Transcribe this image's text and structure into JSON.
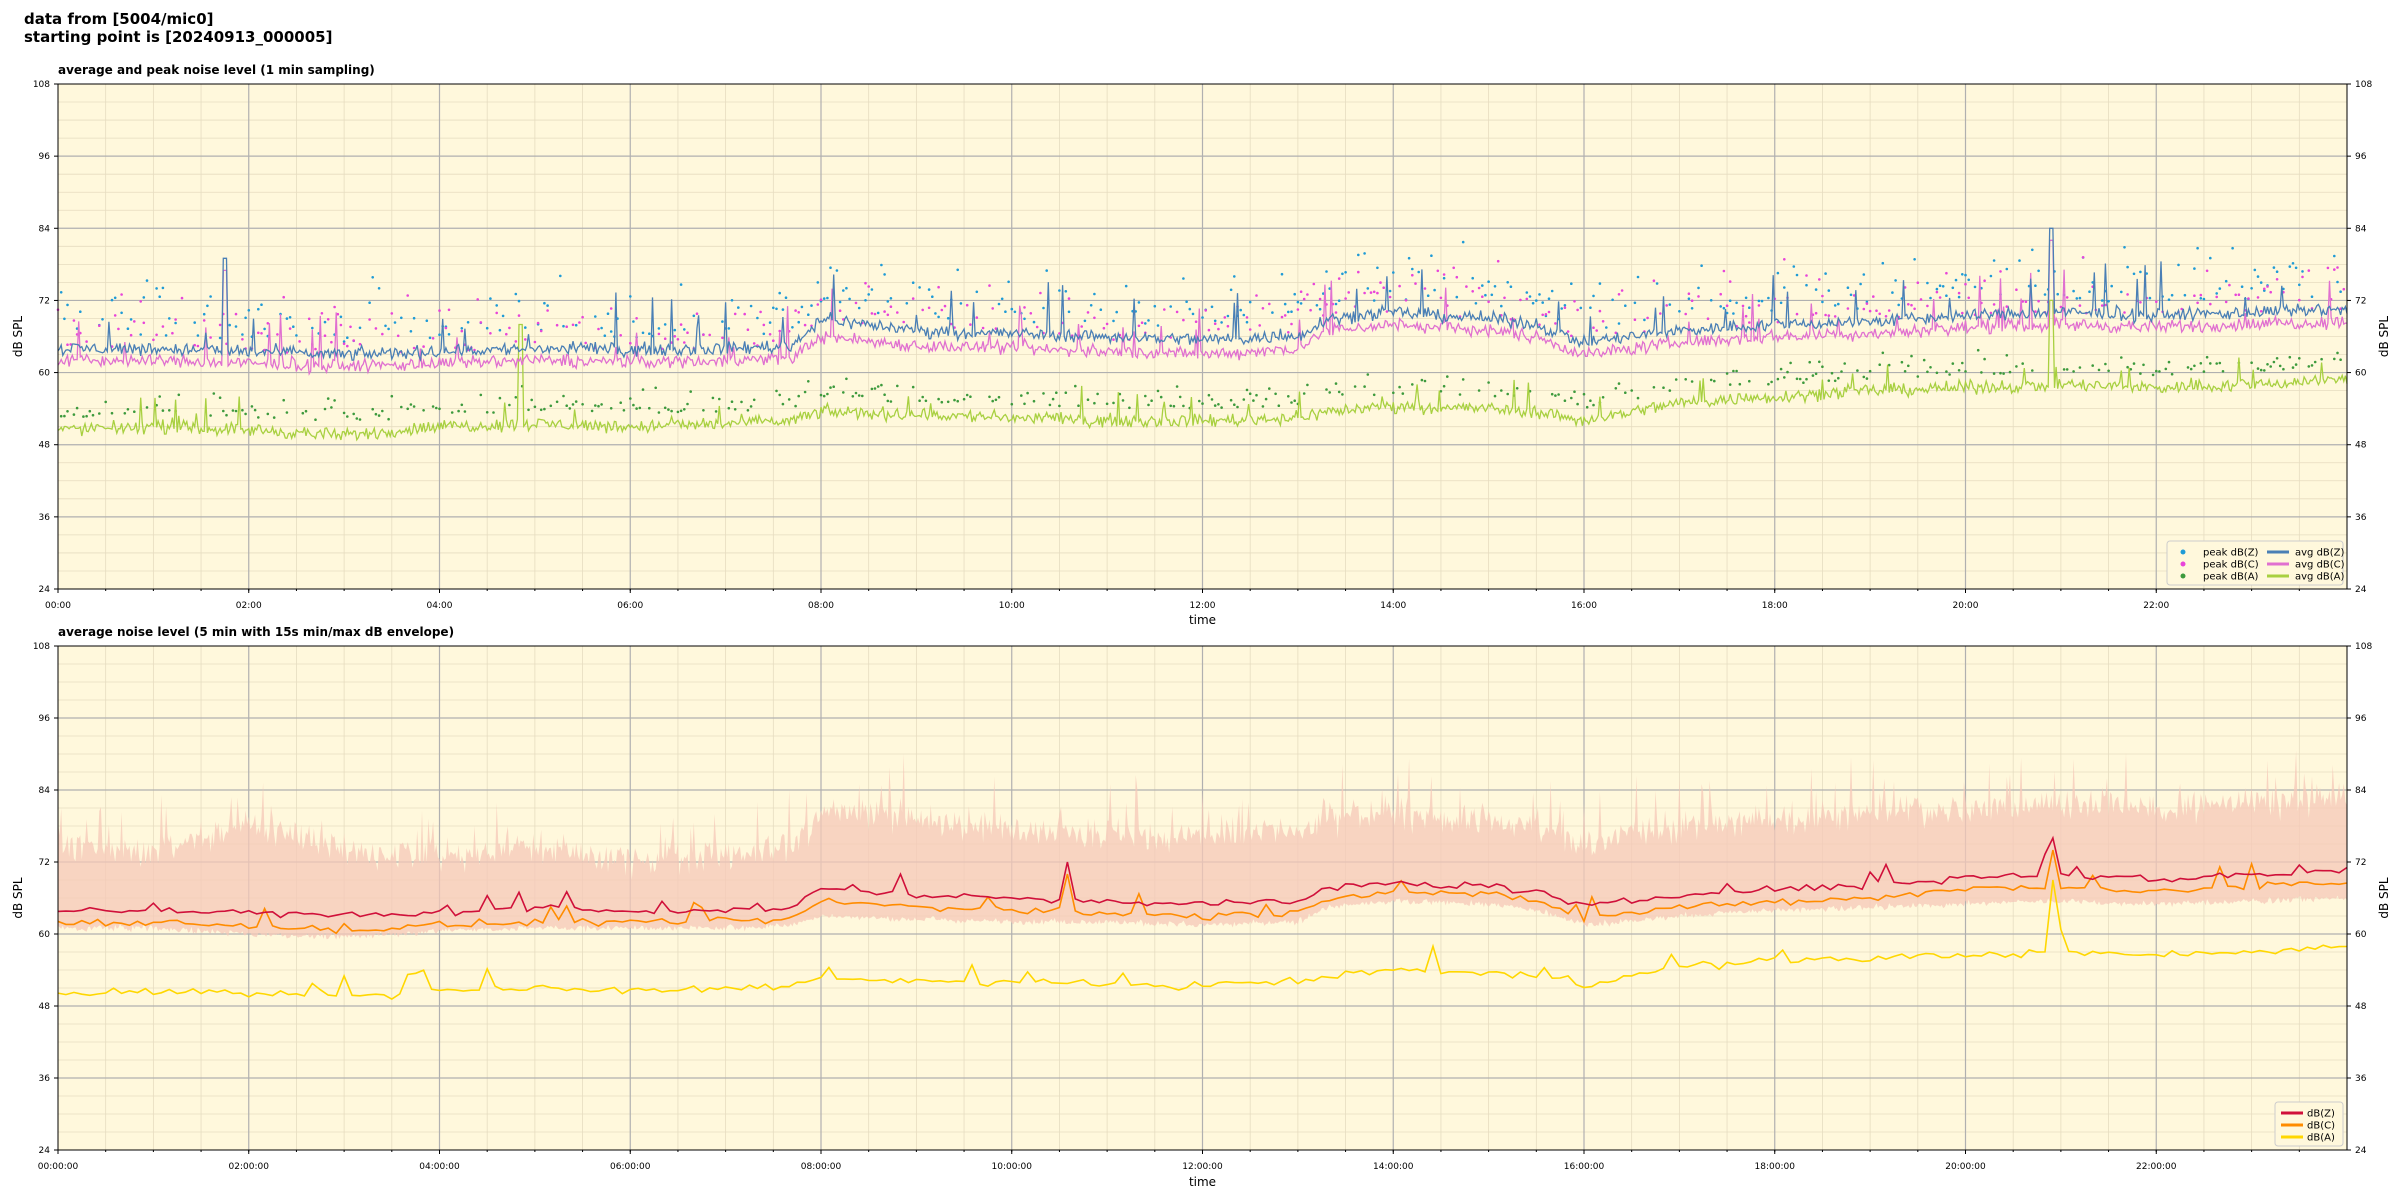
{
  "header": {
    "line1": "data from [5004/mic0]",
    "line2": "starting point is [20240913_000005]"
  },
  "colors": {
    "plot_bg": "#fff8dc",
    "peak_z": "#1f9bd6",
    "peak_c": "#e845d9",
    "peak_a": "#3d9a3d",
    "avg_z": "#4a7fb5",
    "avg_c": "#e070d0",
    "avg_a": "#a8d040",
    "env_fill": "#f5c8b8",
    "dbz": "#d0103a",
    "dbc": "#ff8c00",
    "dba": "#ffd700"
  },
  "chart_data": [
    {
      "type": "line",
      "title": "average and peak noise level (1 min sampling)",
      "xlabel": "time",
      "ylabel": "dB SPL",
      "ylabel_right": "dB SPL",
      "xlim": [
        0,
        24
      ],
      "ylim": [
        24,
        108
      ],
      "yticks": [
        "24",
        "36",
        "48",
        "60",
        "72",
        "84",
        "96",
        "108"
      ],
      "xticks": [
        "00:00",
        "02:00",
        "04:00",
        "06:00",
        "08:00",
        "10:00",
        "12:00",
        "14:00",
        "16:00",
        "18:00",
        "20:00",
        "22:00"
      ],
      "grid": true,
      "legend_position": "bottom-right",
      "legend": [
        "peak dB(Z)",
        "peak dB(C)",
        "peak dB(A)",
        "avg dB(Z)",
        "avg dB(C)",
        "avg dB(A)"
      ],
      "series_baseline": {
        "hours": [
          0,
          1,
          2,
          3,
          4,
          5,
          6,
          7,
          7.7,
          8,
          9,
          10,
          11,
          12,
          13,
          13.3,
          14,
          15,
          15.5,
          16,
          17,
          18,
          19,
          20,
          21,
          22,
          23,
          24
        ],
        "avg_z": [
          64,
          64,
          63.5,
          63,
          63.5,
          64,
          63.8,
          64,
          64.5,
          69,
          67,
          66.5,
          66,
          65.5,
          66,
          69,
          70,
          69,
          68,
          65,
          67,
          68,
          68.5,
          69.5,
          70,
          69.5,
          70,
          70.5
        ],
        "avg_c": [
          62,
          62,
          61.5,
          61,
          61.5,
          62,
          61.8,
          62,
          62.5,
          66,
          64.5,
          64,
          63.5,
          63,
          64,
          67,
          68,
          67,
          66,
          63,
          65,
          66,
          66.5,
          67.5,
          68,
          67.5,
          68,
          68.5
        ],
        "avg_a": [
          50.5,
          51,
          50.5,
          49.5,
          51,
          51.5,
          51,
          51.5,
          52,
          53.5,
          53,
          52.5,
          52,
          52,
          52.5,
          53.5,
          54.5,
          54,
          53.5,
          52,
          55,
          56,
          57,
          57.5,
          58,
          57.5,
          58,
          59
        ]
      },
      "notable_peaks": [
        {
          "series": "avg_z",
          "hour": 1.75,
          "value": 79
        },
        {
          "series": "avg_z",
          "hour": 20.9,
          "value": 84
        },
        {
          "series": "avg_a",
          "hour": 20.9,
          "value": 72
        },
        {
          "series": "avg_a",
          "hour": 4.85,
          "value": 68
        }
      ]
    },
    {
      "type": "line",
      "title": "average noise level (5 min with 15s min/max dB envelope)",
      "xlabel": "time",
      "ylabel": "dB SPL",
      "ylabel_right": "dB SPL",
      "xlim": [
        0,
        24
      ],
      "ylim": [
        24,
        108
      ],
      "yticks": [
        "24",
        "36",
        "48",
        "60",
        "72",
        "84",
        "96",
        "108"
      ],
      "xticks": [
        "00:00:00",
        "02:00:00",
        "04:00:00",
        "06:00:00",
        "08:00:00",
        "10:00:00",
        "12:00:00",
        "14:00:00",
        "16:00:00",
        "18:00:00",
        "20:00:00",
        "22:00:00"
      ],
      "grid": true,
      "legend_position": "bottom-right",
      "legend": [
        "dB(Z)",
        "dB(C)",
        "dB(A)"
      ],
      "series_baseline": {
        "hours": [
          0,
          1,
          2,
          3,
          4,
          5,
          6,
          7,
          7.7,
          8,
          9,
          10,
          11,
          12,
          13,
          13.3,
          14,
          15,
          15.5,
          16,
          17,
          18,
          19,
          20,
          21,
          22,
          23,
          24
        ],
        "dbz": [
          64,
          64,
          63.5,
          63,
          63.5,
          64,
          63.8,
          64,
          64.5,
          67.5,
          66.5,
          66,
          65.5,
          65,
          65.5,
          67.5,
          68.5,
          68,
          67,
          64.5,
          66.5,
          67.5,
          68,
          69.5,
          70,
          69,
          70,
          70.5
        ],
        "dbc": [
          62,
          62,
          61.5,
          60.5,
          61.5,
          62,
          61.8,
          62,
          62.5,
          65.5,
          64.5,
          64,
          63.5,
          63,
          63.5,
          66,
          67,
          66.5,
          65.5,
          62.5,
          64.5,
          65.5,
          66,
          67.5,
          68,
          67,
          68,
          68.5
        ],
        "dba": [
          50,
          50.5,
          50,
          49.5,
          50.5,
          51,
          50.5,
          51,
          51.5,
          52.5,
          52,
          52,
          51.5,
          51.5,
          52,
          53,
          54,
          53.5,
          53,
          51.5,
          54.5,
          55.5,
          56,
          56.5,
          57,
          56.5,
          57,
          58
        ],
        "env_min": [
          61,
          61,
          60,
          59.5,
          60.5,
          61,
          61,
          61,
          61.5,
          63,
          62.5,
          62,
          62,
          61.5,
          62,
          64.5,
          65.5,
          65,
          64,
          61.5,
          63,
          64,
          64.5,
          65,
          65.5,
          65,
          65.5,
          66
        ],
        "env_max": [
          74,
          74,
          78,
          74,
          73,
          75,
          72,
          73,
          74,
          81,
          79,
          78,
          77,
          76,
          77,
          79,
          80,
          79,
          78,
          75,
          78,
          79,
          80,
          81,
          82,
          81,
          82,
          83
        ]
      },
      "notable_peaks": [
        {
          "series": "dbz",
          "hour": 20.9,
          "value": 76
        },
        {
          "series": "dba",
          "hour": 20.9,
          "value": 69
        },
        {
          "series": "dbz",
          "hour": 10.6,
          "value": 72
        }
      ]
    }
  ]
}
